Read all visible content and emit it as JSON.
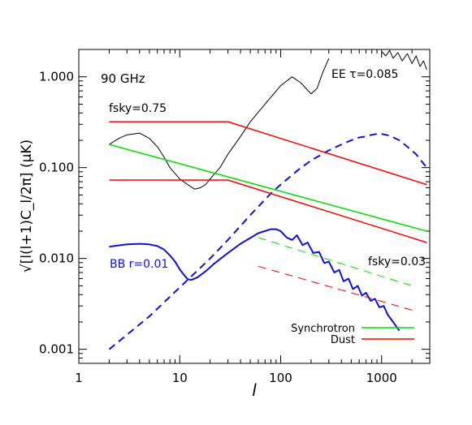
{
  "chart_data": {
    "type": "line",
    "xlabel": "l",
    "ylabel": "√[l(l+1)C_l/2π] (μK)",
    "x_scale": "log",
    "y_scale": "log",
    "xlim": [
      1,
      3000
    ],
    "ylim": [
      0.0007,
      2.0
    ],
    "grid": false,
    "x_ticks": [
      {
        "value": 1,
        "label": "1"
      },
      {
        "value": 10,
        "label": "10"
      },
      {
        "value": 100,
        "label": "100"
      },
      {
        "value": 1000,
        "label": "1000"
      }
    ],
    "y_ticks": [
      {
        "value": 0.001,
        "label": "0.001"
      },
      {
        "value": 0.01,
        "label": "0.010"
      },
      {
        "value": 0.1,
        "label": "0.100"
      },
      {
        "value": 1,
        "label": "1.000"
      }
    ],
    "annotations": {
      "frequency": "90 GHz",
      "ee_label": "EE τ=0.085",
      "bb_label": "BB r=0.01",
      "fsky_large": "fsky=0.75",
      "fsky_small": "fsky=0.03"
    },
    "legend": {
      "placement": "bottom-right",
      "entries": [
        {
          "label": "Synchrotron",
          "color": "#00e000"
        },
        {
          "label": "Dust",
          "color": "#ff0000"
        }
      ]
    },
    "series": [
      {
        "key": "ee",
        "color": "#000000",
        "style": "solid",
        "x": [
          2,
          2.5,
          3,
          4,
          5,
          6,
          7,
          8,
          10,
          12,
          14,
          16,
          18,
          20,
          25,
          30,
          40,
          50,
          70,
          100,
          130,
          160,
          200,
          230,
          260,
          300
        ],
        "y": [
          0.18,
          0.21,
          0.23,
          0.24,
          0.21,
          0.17,
          0.13,
          0.1,
          0.075,
          0.065,
          0.058,
          0.06,
          0.065,
          0.075,
          0.1,
          0.14,
          0.22,
          0.32,
          0.5,
          0.8,
          1.0,
          0.85,
          0.65,
          0.75,
          1.1,
          1.6
        ]
      },
      {
        "key": "ee",
        "color": "#000000",
        "style": "solid",
        "x": [
          1000,
          1100,
          1200,
          1300,
          1450,
          1600,
          1800,
          2000,
          2200,
          2400,
          2600,
          2800
        ],
        "y": [
          1.9,
          1.7,
          1.95,
          1.6,
          1.85,
          1.5,
          1.8,
          1.4,
          1.7,
          1.3,
          1.5,
          1.2
        ]
      },
      {
        "key": "bb_total",
        "color": "#1010dd",
        "style": "dashed",
        "x": [
          2,
          5,
          10,
          20,
          30,
          50,
          80,
          100,
          150,
          200,
          300,
          400,
          500,
          600,
          700,
          800,
          900,
          1000,
          1200,
          1500,
          1800,
          2200,
          2800
        ],
        "y": [
          0.001,
          0.0023,
          0.0048,
          0.01,
          0.016,
          0.03,
          0.052,
          0.065,
          0.095,
          0.12,
          0.155,
          0.18,
          0.2,
          0.215,
          0.22,
          0.23,
          0.235,
          0.235,
          0.225,
          0.2,
          0.17,
          0.14,
          0.1
        ]
      },
      {
        "key": "bb_r001",
        "color": "#1010dd",
        "style": "solid",
        "x": [
          2,
          3,
          4,
          5,
          6,
          7,
          8,
          9,
          10,
          11,
          12,
          13,
          15,
          18,
          22,
          30,
          40,
          60,
          80,
          90,
          100,
          115,
          130,
          145,
          165,
          185,
          210,
          240,
          270,
          300,
          340,
          380,
          420,
          470,
          520,
          580,
          640,
          700,
          780,
          860,
          950,
          1050,
          1150,
          1300,
          1500
        ],
        "y": [
          0.0135,
          0.0143,
          0.0145,
          0.0143,
          0.0137,
          0.0125,
          0.0108,
          0.0092,
          0.0076,
          0.0066,
          0.0059,
          0.0058,
          0.0062,
          0.0072,
          0.0088,
          0.0115,
          0.0145,
          0.019,
          0.021,
          0.021,
          0.02,
          0.017,
          0.016,
          0.018,
          0.014,
          0.015,
          0.0115,
          0.0118,
          0.0089,
          0.0092,
          0.007,
          0.0075,
          0.0056,
          0.006,
          0.0046,
          0.005,
          0.0039,
          0.0042,
          0.0034,
          0.0036,
          0.0029,
          0.003,
          0.0024,
          0.002,
          0.0016
        ]
      },
      {
        "key": "dust_hi",
        "color": "#ff0000",
        "style": "solid",
        "x": [
          2,
          30,
          2800
        ],
        "y": [
          0.32,
          0.32,
          0.065
        ]
      },
      {
        "key": "dust_lo",
        "color": "#ff0000",
        "style": "solid",
        "x": [
          2,
          30,
          2800
        ],
        "y": [
          0.073,
          0.073,
          0.015
        ]
      },
      {
        "key": "synchrotron",
        "color": "#00e000",
        "style": "solid",
        "x": [
          2,
          2800
        ],
        "y": [
          0.18,
          0.02
        ]
      },
      {
        "key": "synchrotron_small",
        "color": "#00e000",
        "style": "dashed",
        "x": [
          60,
          2000
        ],
        "y": [
          0.017,
          0.005
        ]
      },
      {
        "key": "dust_small",
        "color": "#ff0000",
        "style": "dashed",
        "x": [
          60,
          2000
        ],
        "y": [
          0.0082,
          0.0027
        ]
      }
    ]
  }
}
